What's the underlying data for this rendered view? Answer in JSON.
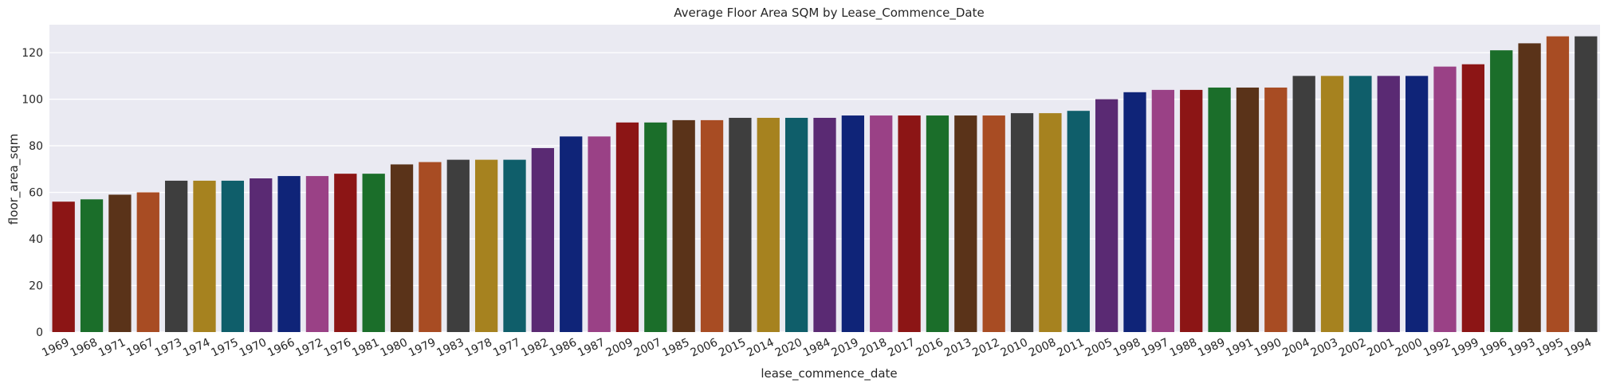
{
  "chart_data": {
    "type": "bar",
    "title": "Average Floor Area SQM by Lease_Commence_Date",
    "xlabel": "lease_commence_date",
    "ylabel": "floor_area_sqm",
    "ylim": [
      0,
      132
    ],
    "yticks": [
      0,
      20,
      40,
      60,
      80,
      100,
      120
    ],
    "grid": true,
    "legend": "none",
    "categories": [
      "1969",
      "1968",
      "1971",
      "1967",
      "1973",
      "1974",
      "1975",
      "1970",
      "1966",
      "1972",
      "1976",
      "1981",
      "1980",
      "1979",
      "1983",
      "1978",
      "1977",
      "1982",
      "1986",
      "1987",
      "2009",
      "2007",
      "1985",
      "2006",
      "2015",
      "2014",
      "2020",
      "1984",
      "2019",
      "2018",
      "2017",
      "2016",
      "2013",
      "2012",
      "2010",
      "2008",
      "2011",
      "2005",
      "1998",
      "1997",
      "1988",
      "1989",
      "1991",
      "1990",
      "2004",
      "2003",
      "2002",
      "2001",
      "2000",
      "1992",
      "1999",
      "1996",
      "1993",
      "1995",
      "1994"
    ],
    "values": [
      56,
      57,
      59,
      60,
      65,
      65,
      65,
      66,
      67,
      67,
      68,
      68,
      72,
      73,
      74,
      74,
      74,
      79,
      84,
      84,
      90,
      90,
      91,
      91,
      92,
      92,
      92,
      92,
      93,
      93,
      93,
      93,
      93,
      93,
      94,
      94,
      95,
      100,
      103,
      104,
      104,
      105,
      105,
      105,
      110,
      110,
      110,
      110,
      110,
      114,
      115,
      121,
      124,
      127,
      127
    ],
    "palette": [
      "#8c1515",
      "#1b6e2a",
      "#5a3319",
      "#a84c23",
      "#3e3e3e",
      "#a6821f",
      "#0f5e6a",
      "#5a2a73",
      "#0f2478",
      "#9a4186"
    ],
    "plot_background": "#eaeaf2",
    "grid_color": "#ffffff"
  }
}
